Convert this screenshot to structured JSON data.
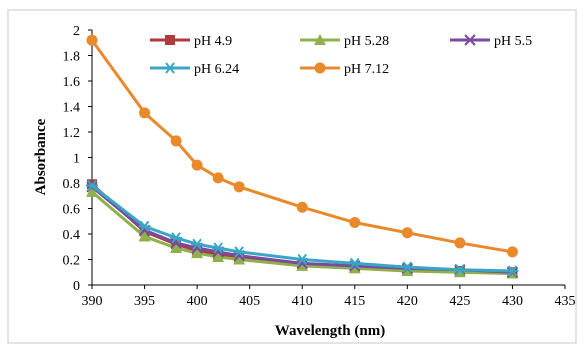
{
  "chart_data": {
    "type": "line",
    "title": "",
    "xlabel": "Wavelength (nm)",
    "ylabel": "Absorbance",
    "xlim": [
      390,
      435
    ],
    "ylim": [
      0,
      2
    ],
    "x_ticks": [
      390,
      395,
      400,
      405,
      410,
      415,
      420,
      425,
      430,
      435
    ],
    "y_ticks": [
      0,
      0.2,
      0.4,
      0.6,
      0.8,
      1,
      1.2,
      1.4,
      1.6,
      1.8,
      2
    ],
    "grid": false,
    "legend_position": "top",
    "x": [
      390,
      395,
      398,
      400,
      402,
      404,
      410,
      415,
      420,
      425,
      430
    ],
    "series": [
      {
        "name": "pH 4.9",
        "color": "#b03a3a",
        "marker": "square",
        "values": [
          0.79,
          0.42,
          0.32,
          0.27,
          0.24,
          0.22,
          0.16,
          0.14,
          0.12,
          0.11,
          0.1
        ]
      },
      {
        "name": "pH 5.28",
        "color": "#8fb04a",
        "marker": "triangle",
        "values": [
          0.73,
          0.38,
          0.29,
          0.25,
          0.22,
          0.2,
          0.15,
          0.13,
          0.11,
          0.1,
          0.09
        ]
      },
      {
        "name": "pH 5.5",
        "color": "#7a4a9e",
        "marker": "x",
        "values": [
          0.77,
          0.43,
          0.33,
          0.29,
          0.26,
          0.23,
          0.17,
          0.15,
          0.13,
          0.12,
          0.1
        ]
      },
      {
        "name": "pH 6.24",
        "color": "#3aa6c6",
        "marker": "star",
        "values": [
          0.78,
          0.46,
          0.37,
          0.32,
          0.29,
          0.26,
          0.2,
          0.17,
          0.14,
          0.12,
          0.11
        ]
      },
      {
        "name": "pH 7.12",
        "color": "#e8892b",
        "marker": "circle",
        "values": [
          1.92,
          1.35,
          1.13,
          0.94,
          0.84,
          0.77,
          0.61,
          0.49,
          0.41,
          0.33,
          0.26
        ]
      }
    ]
  }
}
